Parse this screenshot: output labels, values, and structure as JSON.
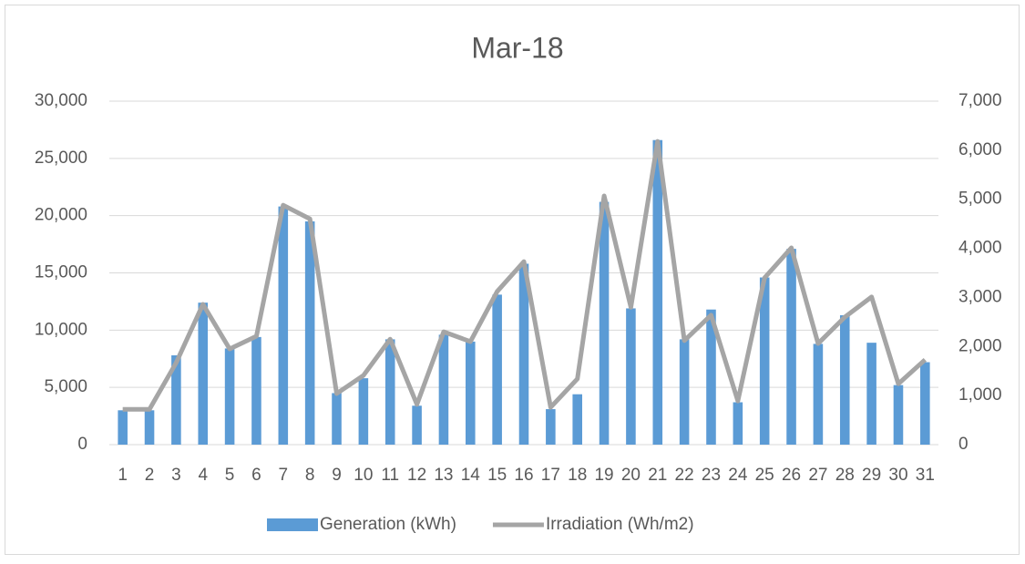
{
  "chart_data": {
    "type": "bar_line",
    "title": "Mar-18",
    "categories": [
      "1",
      "2",
      "3",
      "4",
      "5",
      "6",
      "7",
      "8",
      "9",
      "10",
      "11",
      "12",
      "13",
      "14",
      "15",
      "16",
      "17",
      "18",
      "19",
      "20",
      "21",
      "22",
      "23",
      "24",
      "25",
      "26",
      "27",
      "28",
      "29",
      "30",
      "31"
    ],
    "series": [
      {
        "name": "Generation (kWh)",
        "type": "bar",
        "color": "#5b9bd5",
        "values": [
          3000,
          3000,
          7800,
          12400,
          8400,
          9400,
          20800,
          19500,
          4500,
          5800,
          9200,
          3400,
          9600,
          9000,
          13100,
          15800,
          3100,
          4400,
          21200,
          11900,
          26600,
          9200,
          11800,
          3700,
          14600,
          17100,
          8800,
          11300,
          8900,
          5200,
          7200
        ]
      },
      {
        "name": "Irradiation (Wh/m2)",
        "type": "line",
        "axis": "y2",
        "color": "#a5a5a5",
        "values": [
          720,
          720,
          1670,
          2860,
          1950,
          2210,
          4880,
          4600,
          1040,
          1410,
          2150,
          820,
          2300,
          2100,
          3120,
          3730,
          760,
          1340,
          5070,
          2800,
          6180,
          2120,
          2640,
          890,
          3400,
          4010,
          2060,
          2600,
          3010,
          1240,
          1730
        ]
      }
    ],
    "ylim": [
      0,
      30000
    ],
    "yticks": [
      0,
      {
        "value": 5000,
        "label": "5,000"
      },
      {
        "value": 10000,
        "label": "10,000"
      },
      {
        "value": 15000,
        "label": "15,000"
      },
      {
        "value": 20000,
        "label": "20,000"
      },
      {
        "value": 25000,
        "label": "25,000"
      },
      {
        "value": 30000,
        "label": "30,000"
      }
    ],
    "y2lim": [
      0,
      7000
    ],
    "y2ticks": [
      0,
      {
        "value": 1000,
        "label": "1,000"
      },
      {
        "value": 2000,
        "label": "2,000"
      },
      {
        "value": 3000,
        "label": "3,000"
      },
      {
        "value": 4000,
        "label": "4,000"
      },
      {
        "value": 5000,
        "label": "5,000"
      },
      {
        "value": 6000,
        "label": "6,000"
      },
      {
        "value": 7000,
        "label": "7,000"
      }
    ],
    "grid": true,
    "legend": "bottom"
  }
}
